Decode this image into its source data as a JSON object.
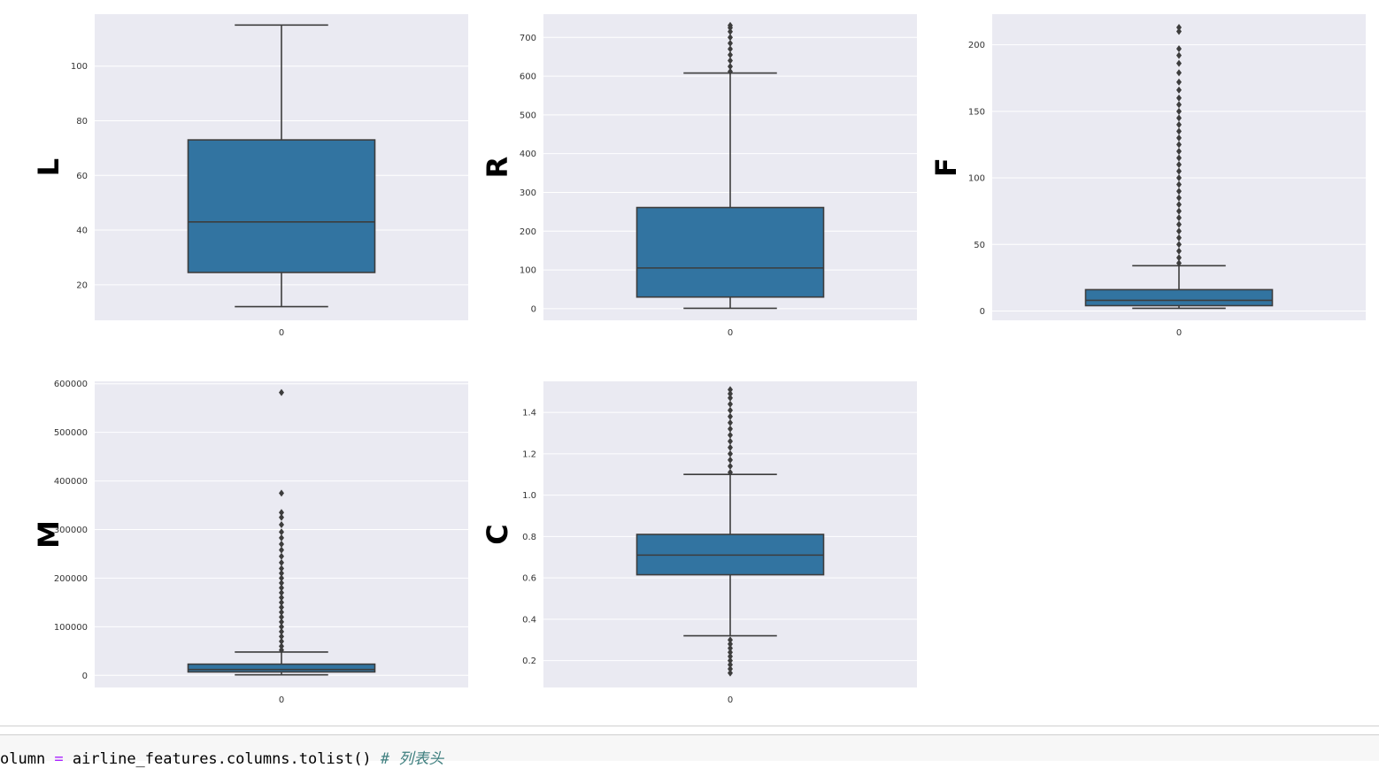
{
  "chart_data": [
    {
      "type": "box",
      "ylabel": "L",
      "xtick": "0",
      "yticks": [
        20,
        40,
        60,
        80,
        100
      ],
      "ylim": [
        7,
        119
      ],
      "stats": {
        "whisker_low": 12,
        "q1": 24.5,
        "median": 43,
        "q3": 73,
        "whisker_high": 115
      },
      "outliers": []
    },
    {
      "type": "box",
      "ylabel": "R",
      "xtick": "0",
      "yticks": [
        0,
        100,
        200,
        300,
        400,
        500,
        600,
        700
      ],
      "ylim": [
        -30,
        760
      ],
      "stats": {
        "whisker_low": 1,
        "q1": 30,
        "median": 105,
        "q3": 261,
        "whisker_high": 608
      },
      "outliers": [
        612,
        625,
        640,
        655,
        670,
        685,
        700,
        715,
        725,
        731
      ]
    },
    {
      "type": "box",
      "ylabel": "F",
      "xtick": "0",
      "yticks": [
        0,
        50,
        100,
        150,
        200
      ],
      "ylim": [
        -7,
        223
      ],
      "stats": {
        "whisker_low": 2,
        "q1": 4,
        "median": 8,
        "q3": 16,
        "whisker_high": 34
      },
      "outliers": [
        36,
        40,
        45,
        50,
        55,
        60,
        65,
        70,
        75,
        80,
        85,
        90,
        95,
        100,
        105,
        110,
        115,
        120,
        125,
        130,
        135,
        140,
        145,
        150,
        155,
        160,
        166,
        172,
        179,
        186,
        192,
        197,
        210,
        213
      ]
    },
    {
      "type": "box",
      "ylabel": "M",
      "xtick": "0",
      "yticks": [
        0,
        100000,
        200000,
        300000,
        400000,
        500000,
        600000
      ],
      "ylim": [
        -25000,
        605000
      ],
      "stats": {
        "whisker_low": 1000,
        "q1": 7000,
        "median": 12000,
        "q3": 23000,
        "whisker_high": 48000
      },
      "outliers": [
        52000,
        60000,
        70000,
        80000,
        90000,
        100000,
        110000,
        120000,
        130000,
        140000,
        150000,
        160000,
        170000,
        180000,
        190000,
        200000,
        210000,
        220000,
        232000,
        245000,
        258000,
        270000,
        283000,
        295000,
        310000,
        325000,
        335000,
        375000,
        582000
      ]
    },
    {
      "type": "box",
      "ylabel": "C",
      "xtick": "0",
      "yticks": [
        0.2,
        0.4,
        0.6,
        0.8,
        1.0,
        1.2,
        1.4
      ],
      "ylim": [
        0.07,
        1.55
      ],
      "stats": {
        "whisker_low": 0.32,
        "q1": 0.615,
        "median": 0.71,
        "q3": 0.81,
        "whisker_high": 1.1
      },
      "outliers": [
        0.14,
        0.16,
        0.18,
        0.2,
        0.22,
        0.24,
        0.26,
        0.28,
        0.3,
        1.11,
        1.14,
        1.17,
        1.2,
        1.23,
        1.26,
        1.29,
        1.32,
        1.35,
        1.38,
        1.41,
        1.44,
        1.47,
        1.49,
        1.51
      ]
    }
  ],
  "colors": {
    "axes_bg": "#eaeaf2",
    "grid": "#ffffff",
    "box_fill": "#3274a1",
    "line": "#3d3d3d",
    "tick_text": "#333333",
    "label_text": "#000000"
  },
  "code_cell": {
    "prefix": "olumn ",
    "op": "=",
    "expr": " airline_features.columns.tolist() ",
    "comment": "# 列表头"
  }
}
